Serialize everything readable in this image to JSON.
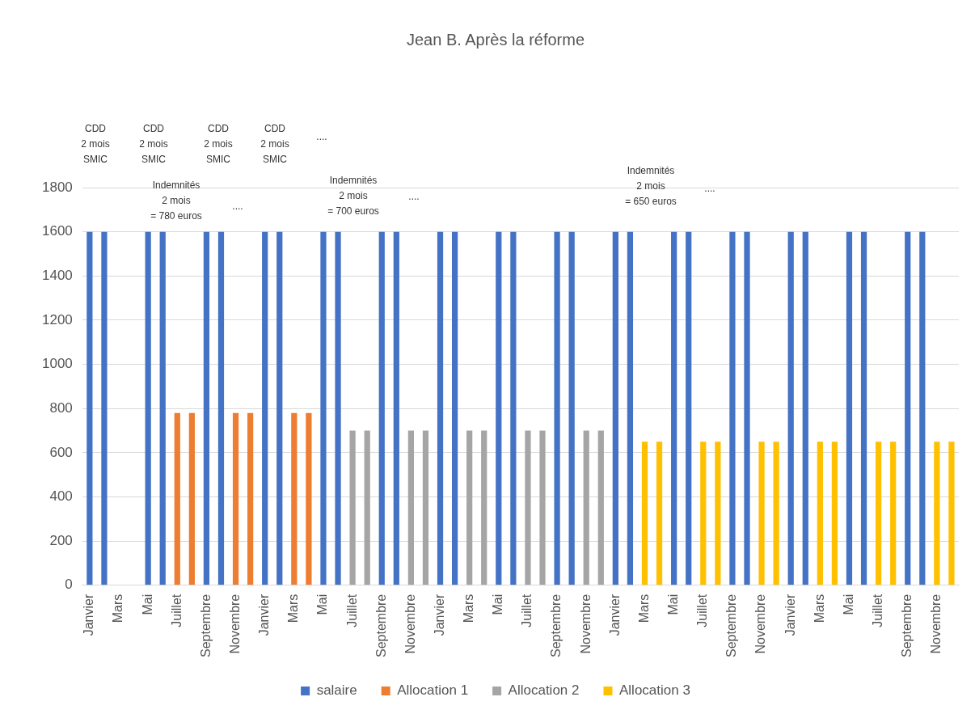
{
  "chart_data": {
    "type": "bar",
    "title": "Jean B. Après la réforme",
    "categories": [
      "Janvier",
      null,
      "Mars",
      null,
      "Mai",
      null,
      "Juillet",
      null,
      "Septembre",
      null,
      "Novembre",
      null,
      "Janvier",
      null,
      "Mars",
      null,
      "Mai",
      null,
      "Juillet",
      null,
      "Septembre",
      null,
      "Novembre",
      null,
      "Janvier",
      null,
      "Mars",
      null,
      "Mai",
      null,
      "Juillet",
      null,
      "Septembre",
      null,
      "Novembre",
      null,
      "Janvier",
      null,
      "Mars",
      null,
      "Mai",
      null,
      "Juillet",
      null,
      "Septembre",
      null,
      "Novembre",
      null,
      "Janvier",
      null,
      "Mars",
      null,
      "Mai",
      null,
      "Juillet",
      null,
      "Septembre",
      null,
      "Novembre",
      null
    ],
    "series": [
      {
        "name": "salaire",
        "color": "#4472c4",
        "values": [
          1600,
          1600,
          null,
          null,
          1600,
          1600,
          null,
          null,
          1600,
          1600,
          null,
          null,
          1600,
          1600,
          null,
          null,
          1600,
          1600,
          null,
          null,
          1600,
          1600,
          null,
          null,
          1600,
          1600,
          null,
          null,
          1600,
          1600,
          null,
          null,
          1600,
          1600,
          null,
          null,
          1600,
          1600,
          null,
          null,
          1600,
          1600,
          null,
          null,
          1600,
          1600,
          null,
          null,
          1600,
          1600,
          null,
          null,
          1600,
          1600,
          null,
          null,
          1600,
          1600,
          null,
          null
        ]
      },
      {
        "name": "Allocation 1",
        "color": "#ed7d31",
        "values": [
          null,
          null,
          null,
          null,
          null,
          null,
          780,
          780,
          null,
          null,
          780,
          780,
          null,
          null,
          780,
          780,
          null,
          null,
          null,
          null,
          null,
          null,
          null,
          null,
          null,
          null,
          null,
          null,
          null,
          null,
          null,
          null,
          null,
          null,
          null,
          null,
          null,
          null,
          null,
          null,
          null,
          null,
          null,
          null,
          null,
          null,
          null,
          null,
          null,
          null,
          null,
          null,
          null,
          null,
          null,
          null,
          null,
          null,
          null,
          null
        ]
      },
      {
        "name": "Allocation 2",
        "color": "#a5a5a5",
        "values": [
          null,
          null,
          null,
          null,
          null,
          null,
          null,
          null,
          null,
          null,
          null,
          null,
          null,
          null,
          null,
          null,
          null,
          null,
          700,
          700,
          null,
          null,
          700,
          700,
          null,
          null,
          700,
          700,
          null,
          null,
          700,
          700,
          null,
          null,
          700,
          700,
          null,
          null,
          null,
          null,
          null,
          null,
          null,
          null,
          null,
          null,
          null,
          null,
          null,
          null,
          null,
          null,
          null,
          null,
          null,
          null,
          null,
          null,
          null,
          null
        ]
      },
      {
        "name": "Allocation 3",
        "color": "#ffc000",
        "values": [
          null,
          null,
          null,
          null,
          null,
          null,
          null,
          null,
          null,
          null,
          null,
          null,
          null,
          null,
          null,
          null,
          null,
          null,
          null,
          null,
          null,
          null,
          null,
          null,
          null,
          null,
          null,
          null,
          null,
          null,
          null,
          null,
          null,
          null,
          null,
          null,
          null,
          null,
          650,
          650,
          null,
          null,
          650,
          650,
          null,
          null,
          650,
          650,
          null,
          null,
          650,
          650,
          null,
          null,
          650,
          650,
          null,
          null,
          650,
          650
        ]
      }
    ],
    "stacked": true,
    "ylim": [
      0,
      1800
    ],
    "yticks": [
      0,
      200,
      400,
      600,
      800,
      1000,
      1200,
      1400,
      1600,
      1800
    ],
    "grid": "y",
    "legend": "bottom",
    "annotations": [
      "CDD\n2 mois\nSMIC",
      "CDD\n2 mois\nSMIC",
      "CDD\n2 mois\nSMIC",
      "CDD\n2 mois\nSMIC",
      "....",
      "Indemnités\n2 mois\n= 780 euros",
      "....",
      "Indemnités\n2 mois\n= 700 euros",
      "....",
      "Indemnités\n2 mois\n= 650 euros",
      "...."
    ]
  }
}
